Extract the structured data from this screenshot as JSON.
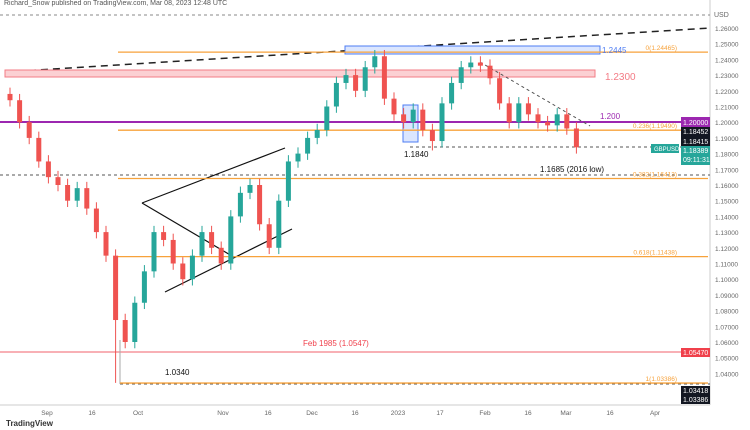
{
  "header": "Richard_Snow published on TradingView.com, Mar 08, 2023 12:48 UTC",
  "logo": "TradingView",
  "chart_data": {
    "type": "candlestick",
    "symbol": "GBPUSD",
    "currency": "USD",
    "ylim": [
      1.025,
      1.27
    ],
    "y_ticks": [
      1.26,
      1.25,
      1.24,
      1.23,
      1.22,
      1.21,
      1.2,
      1.19,
      1.18,
      1.17,
      1.16,
      1.15,
      1.14,
      1.13,
      1.12,
      1.11,
      1.1,
      1.09,
      1.08,
      1.07,
      1.06,
      1.05,
      1.04
    ],
    "x_ticks": [
      "Sep",
      "16",
      "Oct",
      "Nov",
      "16",
      "Dec",
      "16",
      "2023",
      "17",
      "Feb",
      "16",
      "Mar",
      "16",
      "Apr"
    ],
    "closes": [
      1.214,
      1.2,
      1.19,
      1.175,
      1.165,
      1.16,
      1.15,
      1.158,
      1.145,
      1.13,
      1.115,
      1.074,
      1.06,
      1.085,
      1.105,
      1.13,
      1.125,
      1.11,
      1.1,
      1.115,
      1.13,
      1.12,
      1.11,
      1.14,
      1.155,
      1.16,
      1.135,
      1.12,
      1.15,
      1.175,
      1.18,
      1.19,
      1.195,
      1.21,
      1.225,
      1.23,
      1.22,
      1.235,
      1.242,
      1.215,
      1.205,
      1.2,
      1.208,
      1.195,
      1.188,
      1.212,
      1.225,
      1.235,
      1.238,
      1.236,
      1.228,
      1.212,
      1.2,
      1.212,
      1.205,
      1.2,
      1.198,
      1.205,
      1.196,
      1.184
    ],
    "levels": [
      {
        "label": "0(1.24465)",
        "value": 1.24465,
        "color": "#f7a23b"
      },
      {
        "label": "0.236(1.19490)",
        "value": 1.1949,
        "color": "#f7a23b"
      },
      {
        "label": "0.382(1.16413)",
        "value": 1.16413,
        "color": "#f7a23b"
      },
      {
        "label": "0.618(1.11438)",
        "value": 1.11438,
        "color": "#f7a23b"
      },
      {
        "label": "1(1.03386)",
        "value": 1.03386,
        "color": "#f7a23b"
      }
    ],
    "annotations": {
      "a1": "1.2445",
      "a2": "1.2300",
      "a3": "1.200",
      "a4": "1.1840",
      "a5": "1.1685 (2016 low)",
      "a6": "Feb 1985 (1.0547)",
      "a7": "1.0340"
    },
    "price_tags": {
      "p1": "1.20000",
      "p2": "1.18452",
      "p3": "1.18415",
      "p4": "1.18389",
      "timer": "09:11:31",
      "p5": "1.05470",
      "p6": "1.03418",
      "p7": "1.03386"
    }
  }
}
